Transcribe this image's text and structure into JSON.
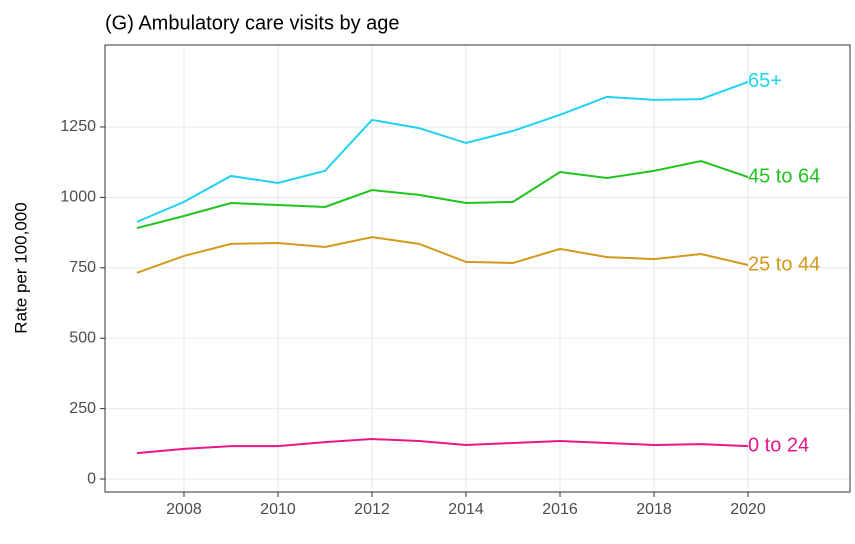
{
  "chart_data": {
    "type": "line",
    "title": "(G) Ambulatory care visits by age",
    "y_label": "Rate per 100,000",
    "x": [
      2007,
      2008,
      2009,
      2010,
      2011,
      2012,
      2013,
      2014,
      2015,
      2016,
      2017,
      2018,
      2019,
      2020
    ],
    "series": [
      {
        "name": "65+",
        "color": "#1dd3f0",
        "values": [
          913,
          984,
          1076,
          1051,
          1094,
          1275,
          1246,
          1193,
          1236,
          1293,
          1357,
          1346,
          1349,
          1410
        ]
      },
      {
        "name": "45 to 64",
        "color": "#1fc41f",
        "values": [
          891,
          934,
          980,
          973,
          966,
          1026,
          1009,
          980,
          984,
          1090,
          1069,
          1094,
          1129,
          1072
        ]
      },
      {
        "name": "25 to 44",
        "color": "#d4991a",
        "values": [
          732,
          792,
          835,
          838,
          824,
          859,
          835,
          771,
          767,
          817,
          788,
          781,
          799,
          760
        ]
      },
      {
        "name": "0 to 24",
        "color": "#e8178a",
        "values": [
          92,
          107,
          117,
          117,
          131,
          142,
          135,
          121,
          128,
          135,
          128,
          121,
          124,
          117
        ]
      }
    ],
    "xlim": [
      2006.32,
      2022.17
    ],
    "ylim": [
      -46,
      1541
    ],
    "xticks": [
      2008,
      2010,
      2012,
      2014,
      2016,
      2018,
      2020
    ],
    "yticks": [
      0,
      250,
      500,
      750,
      1000,
      1250
    ],
    "grid": true
  }
}
